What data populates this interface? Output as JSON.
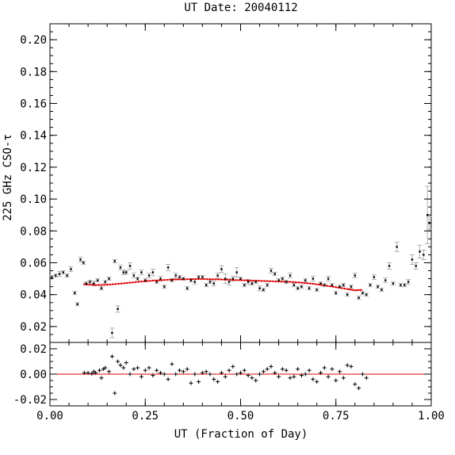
{
  "chart_data": {
    "title": "UT Date: 20040112",
    "xlabel": "UT (Fraction of Day)",
    "ylabel": "225 GHz CSO-τ",
    "xlim": [
      0.0,
      1.0
    ],
    "x_ticks": [
      "0.00",
      "0.25",
      "0.50",
      "0.75",
      "1.00"
    ],
    "colors": {
      "data": "#000000",
      "errorbar": "#b0b0b0",
      "fit": "#e00000",
      "zero_line": "#e00000"
    },
    "panels": [
      {
        "name": "tau",
        "type": "scatter",
        "ylim": [
          0.01,
          0.21
        ],
        "y_ticks": [
          "0.02",
          "0.04",
          "0.06",
          "0.08",
          "0.10",
          "0.12",
          "0.14",
          "0.16",
          "0.18",
          "0.20"
        ],
        "series": [
          {
            "style": "points-with-errorbars",
            "x": [
              0.005,
              0.015,
              0.025,
              0.035,
              0.045,
              0.055,
              0.065,
              0.072,
              0.08,
              0.088,
              0.095,
              0.105,
              0.115,
              0.125,
              0.135,
              0.145,
              0.155,
              0.163,
              0.17,
              0.178,
              0.185,
              0.193,
              0.2,
              0.21,
              0.22,
              0.23,
              0.24,
              0.25,
              0.26,
              0.27,
              0.28,
              0.29,
              0.3,
              0.31,
              0.32,
              0.33,
              0.34,
              0.35,
              0.36,
              0.37,
              0.38,
              0.39,
              0.4,
              0.41,
              0.42,
              0.43,
              0.44,
              0.45,
              0.46,
              0.47,
              0.48,
              0.49,
              0.5,
              0.51,
              0.52,
              0.53,
              0.54,
              0.55,
              0.56,
              0.57,
              0.58,
              0.59,
              0.6,
              0.61,
              0.62,
              0.63,
              0.64,
              0.65,
              0.66,
              0.67,
              0.68,
              0.69,
              0.7,
              0.71,
              0.72,
              0.73,
              0.74,
              0.75,
              0.76,
              0.77,
              0.78,
              0.79,
              0.8,
              0.81,
              0.82,
              0.83,
              0.84,
              0.85,
              0.86,
              0.87,
              0.88,
              0.89,
              0.9,
              0.91,
              0.92,
              0.93,
              0.94,
              0.95,
              0.96,
              0.97,
              0.98,
              0.99,
              0.995
            ],
            "y": [
              0.051,
              0.052,
              0.053,
              0.054,
              0.052,
              0.056,
              0.041,
              0.034,
              0.062,
              0.06,
              0.047,
              0.048,
              0.047,
              0.049,
              0.044,
              0.048,
              0.05,
              0.016,
              0.061,
              0.031,
              0.057,
              0.054,
              0.054,
              0.058,
              0.052,
              0.05,
              0.054,
              0.049,
              0.052,
              0.054,
              0.048,
              0.05,
              0.045,
              0.057,
              0.049,
              0.052,
              0.051,
              0.05,
              0.044,
              0.049,
              0.048,
              0.051,
              0.051,
              0.046,
              0.048,
              0.047,
              0.052,
              0.056,
              0.05,
              0.048,
              0.05,
              0.054,
              0.05,
              0.046,
              0.048,
              0.047,
              0.048,
              0.044,
              0.043,
              0.046,
              0.055,
              0.053,
              0.049,
              0.05,
              0.048,
              0.052,
              0.046,
              0.044,
              0.045,
              0.049,
              0.044,
              0.05,
              0.043,
              0.047,
              0.046,
              0.05,
              0.046,
              0.041,
              0.045,
              0.046,
              0.04,
              0.045,
              0.052,
              0.038,
              0.041,
              0.04,
              0.046,
              0.051,
              0.045,
              0.043,
              0.049,
              0.058,
              0.047,
              0.07,
              0.046,
              0.046,
              0.048,
              0.062,
              0.058,
              0.067,
              0.065,
              0.09,
              0.085
            ],
            "yerr": [
              0.001,
              0.001,
              0.0015,
              0.001,
              0.001,
              0.0015,
              0.001,
              0.001,
              0.0015,
              0.001,
              0.001,
              0.001,
              0.0015,
              0.001,
              0.001,
              0.001,
              0.001,
              0.003,
              0.001,
              0.002,
              0.0015,
              0.0015,
              0.001,
              0.002,
              0.0015,
              0.001,
              0.0015,
              0.001,
              0.0015,
              0.002,
              0.001,
              0.0015,
              0.001,
              0.002,
              0.001,
              0.0015,
              0.001,
              0.001,
              0.001,
              0.001,
              0.0015,
              0.001,
              0.001,
              0.001,
              0.001,
              0.0015,
              0.0015,
              0.002,
              0.003,
              0.002,
              0.0015,
              0.003,
              0.001,
              0.001,
              0.0015,
              0.001,
              0.001,
              0.0015,
              0.001,
              0.001,
              0.0015,
              0.001,
              0.001,
              0.001,
              0.001,
              0.0015,
              0.001,
              0.001,
              0.001,
              0.001,
              0.001,
              0.0015,
              0.001,
              0.001,
              0.001,
              0.0015,
              0.001,
              0.001,
              0.001,
              0.001,
              0.001,
              0.001,
              0.0015,
              0.001,
              0.001,
              0.001,
              0.001,
              0.0015,
              0.001,
              0.001,
              0.0015,
              0.002,
              0.001,
              0.003,
              0.001,
              0.001,
              0.0015,
              0.003,
              0.002,
              0.004,
              0.003,
              0.018,
              0.004
            ]
          },
          {
            "style": "fit-curve",
            "x": [
              0.09,
              0.12,
              0.15,
              0.18,
              0.21,
              0.24,
              0.27,
              0.3,
              0.33,
              0.36,
              0.39,
              0.42,
              0.45,
              0.48,
              0.51,
              0.54,
              0.57,
              0.6,
              0.63,
              0.66,
              0.69,
              0.72,
              0.75,
              0.78,
              0.8,
              0.82
            ],
            "y": [
              0.0465,
              0.046,
              0.0462,
              0.0468,
              0.0475,
              0.0482,
              0.0488,
              0.0492,
              0.0495,
              0.0497,
              0.0498,
              0.0497,
              0.0495,
              0.0492,
              0.049,
              0.0487,
              0.0485,
              0.0482,
              0.048,
              0.0475,
              0.0468,
              0.0458,
              0.0447,
              0.0435,
              0.0427,
              0.043
            ]
          }
        ]
      },
      {
        "name": "residuals",
        "type": "scatter",
        "ylim": [
          -0.025,
          0.025
        ],
        "y_ticks": [
          "-0.02",
          "0.00",
          "0.02"
        ],
        "series": [
          {
            "style": "plus-markers",
            "x": [
              0.09,
              0.1,
              0.11,
              0.115,
              0.12,
              0.13,
              0.135,
              0.14,
              0.145,
              0.155,
              0.163,
              0.17,
              0.178,
              0.185,
              0.193,
              0.2,
              0.21,
              0.22,
              0.23,
              0.24,
              0.25,
              0.26,
              0.27,
              0.28,
              0.29,
              0.3,
              0.31,
              0.32,
              0.33,
              0.34,
              0.35,
              0.36,
              0.37,
              0.38,
              0.39,
              0.4,
              0.41,
              0.42,
              0.43,
              0.44,
              0.45,
              0.46,
              0.47,
              0.48,
              0.49,
              0.5,
              0.51,
              0.52,
              0.53,
              0.54,
              0.55,
              0.56,
              0.57,
              0.58,
              0.59,
              0.6,
              0.61,
              0.62,
              0.63,
              0.64,
              0.65,
              0.66,
              0.67,
              0.68,
              0.69,
              0.7,
              0.71,
              0.72,
              0.73,
              0.74,
              0.75,
              0.76,
              0.77,
              0.78,
              0.79,
              0.8,
              0.81,
              0.82,
              0.83
            ],
            "y": [
              0.001,
              0.001,
              0.0005,
              0.002,
              0.001,
              0.003,
              -0.003,
              0.004,
              0.005,
              0.002,
              0.014,
              -0.015,
              0.01,
              0.007,
              0.005,
              0.009,
              0.0,
              0.004,
              0.005,
              -0.002,
              0.003,
              0.005,
              -0.001,
              0.003,
              0.001,
              0.0,
              -0.004,
              0.008,
              0.0,
              0.003,
              0.002,
              0.004,
              -0.007,
              0.0,
              -0.006,
              0.001,
              0.002,
              0.0,
              -0.004,
              -0.006,
              0.001,
              -0.002,
              0.003,
              0.006,
              0.0,
              0.001,
              0.003,
              -0.001,
              -0.003,
              -0.005,
              0.0,
              0.002,
              0.004,
              0.006,
              0.001,
              -0.002,
              0.004,
              0.003,
              -0.003,
              -0.002,
              0.004,
              -0.001,
              0.0,
              0.003,
              -0.004,
              -0.006,
              0.001,
              0.005,
              -0.002,
              0.004,
              -0.005,
              0.002,
              -0.003,
              0.007,
              0.006,
              -0.008,
              -0.011,
              0.0,
              -0.003
            ]
          },
          {
            "style": "zero-line",
            "x": [
              0.0,
              1.0
            ],
            "y": [
              0.0,
              0.0
            ]
          }
        ]
      }
    ]
  }
}
